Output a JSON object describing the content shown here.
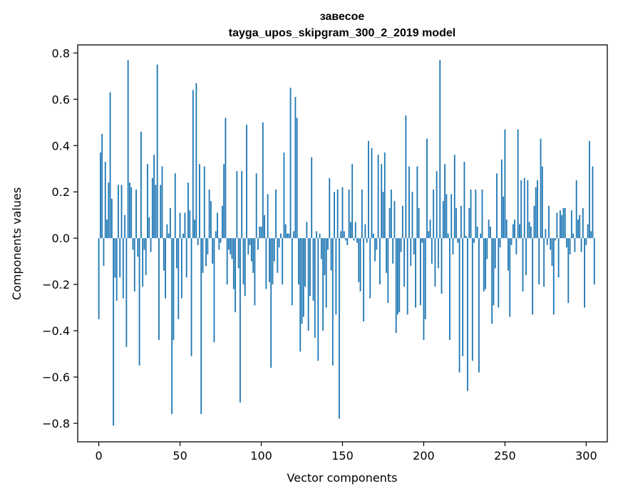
{
  "chart_data": {
    "type": "bar",
    "title_line1": "завесое",
    "title_line2": "tayga_upos_skipgram_300_2_2019 model",
    "xlabel": "Vector components",
    "ylabel": "Components values",
    "xlim": [
      -13,
      313
    ],
    "ylim": [
      -0.88,
      0.835
    ],
    "x_ticks": [
      0,
      50,
      100,
      150,
      200,
      250,
      300
    ],
    "x_tick_labels": [
      "0",
      "50",
      "100",
      "150",
      "200",
      "250",
      "300"
    ],
    "y_ticks": [
      -0.8,
      -0.6,
      -0.4,
      -0.2,
      0.0,
      0.2,
      0.4,
      0.6,
      0.8
    ],
    "y_tick_labels": [
      "−0.8",
      "−0.6",
      "−0.4",
      "−0.2",
      "0.0",
      "0.2",
      "0.4",
      "0.6",
      "0.8"
    ],
    "bar_color": "#1f77b4",
    "series": [
      {
        "name": "components",
        "values": [
          -0.35,
          0.37,
          0.45,
          -0.12,
          0.33,
          0.08,
          0.24,
          0.63,
          0.17,
          -0.81,
          -0.17,
          -0.27,
          0.23,
          -0.17,
          0.23,
          -0.26,
          0.1,
          -0.47,
          0.77,
          0.24,
          0.22,
          -0.05,
          -0.23,
          0.21,
          -0.08,
          -0.55,
          0.46,
          -0.21,
          -0.05,
          -0.16,
          0.32,
          0.09,
          -0.06,
          0.26,
          0.36,
          0.23,
          0.75,
          -0.44,
          0.23,
          0.31,
          -0.14,
          -0.26,
          0.06,
          0.02,
          0.13,
          -0.76,
          -0.44,
          0.28,
          -0.13,
          -0.35,
          0.11,
          -0.26,
          0.02,
          0.11,
          -0.17,
          0.24,
          0.12,
          -0.51,
          0.64,
          0.08,
          0.67,
          -0.03,
          0.32,
          -0.76,
          -0.15,
          0.31,
          -0.12,
          -0.07,
          0.21,
          0.16,
          -0.11,
          -0.45,
          0.03,
          0.11,
          -0.05,
          -0.02,
          0.14,
          0.32,
          0.52,
          -0.2,
          -0.05,
          -0.07,
          -0.09,
          -0.22,
          -0.32,
          0.29,
          -0.13,
          -0.71,
          0.29,
          -0.2,
          -0.25,
          0.49,
          -0.07,
          -0.03,
          -0.1,
          -0.15,
          -0.29,
          0.28,
          -0.05,
          0.05,
          0.05,
          0.5,
          0.1,
          -0.22,
          0.19,
          -0.19,
          -0.56,
          -0.2,
          -0.1,
          0.21,
          -0.15,
          -0.04,
          0.02,
          -0.2,
          0.37,
          0.06,
          0.02,
          0.02,
          0.65,
          -0.29,
          0.03,
          0.61,
          0.52,
          -0.2,
          -0.49,
          -0.37,
          -0.34,
          -0.21,
          0.07,
          -0.4,
          -0.25,
          0.35,
          -0.27,
          -0.43,
          0.03,
          -0.53,
          0.02,
          -0.09,
          -0.4,
          -0.16,
          -0.3,
          -0.05,
          0.26,
          -0.14,
          -0.55,
          0.2,
          -0.33,
          0.21,
          -0.78,
          0.03,
          0.22,
          0.03,
          -0.01,
          -0.03,
          0.21,
          0.07,
          0.32,
          -0.01,
          0.07,
          -0.02,
          -0.19,
          -0.23,
          0.21,
          -0.36,
          0.06,
          -0.02,
          0.42,
          -0.26,
          0.39,
          0.02,
          -0.1,
          -0.05,
          0.36,
          -0.2,
          0.32,
          0.2,
          0.37,
          -0.15,
          -0.28,
          0.13,
          0.21,
          -0.11,
          0.16,
          -0.41,
          -0.33,
          -0.32,
          -0.06,
          0.14,
          -0.21,
          0.53,
          -0.33,
          0.31,
          -0.12,
          0.2,
          -0.07,
          -0.3,
          0.31,
          0.13,
          -0.29,
          -0.02,
          -0.44,
          -0.35,
          0.43,
          0.03,
          0.08,
          -0.11,
          0.21,
          -0.21,
          0.29,
          -0.13,
          0.77,
          -0.24,
          0.16,
          0.32,
          0.19,
          0.02,
          -0.44,
          0.19,
          -0.07,
          0.36,
          0.13,
          -0.02,
          -0.58,
          0.14,
          -0.51,
          0.33,
          0.01,
          -0.66,
          0.13,
          0.21,
          -0.53,
          -0.02,
          0.21,
          0.05,
          -0.58,
          0.02,
          0.21,
          -0.23,
          -0.22,
          -0.09,
          0.08,
          0.05,
          -0.37,
          -0.29,
          -0.13,
          0.28,
          -0.3,
          -0.04,
          0.34,
          0.18,
          0.47,
          0.08,
          -0.14,
          -0.34,
          -0.03,
          0.06,
          0.08,
          -0.07,
          0.47,
          0.06,
          0.25,
          -0.23,
          0.26,
          -0.16,
          0.25,
          0.07,
          0.05,
          -0.33,
          0.14,
          0.22,
          0.25,
          -0.2,
          0.43,
          0.31,
          -0.21,
          0.04,
          -0.03,
          0.14,
          -0.05,
          -0.12,
          -0.33,
          -0.01,
          0.11,
          -0.17,
          0.12,
          0.1,
          0.13,
          0.13,
          -0.04,
          -0.28,
          -0.07,
          0.12,
          0.02,
          -0.06,
          0.25,
          0.08,
          0.1,
          -0.06,
          0.13,
          -0.3,
          -0.03,
          0.06,
          0.42,
          0.03,
          0.31,
          -0.2
        ]
      }
    ]
  }
}
